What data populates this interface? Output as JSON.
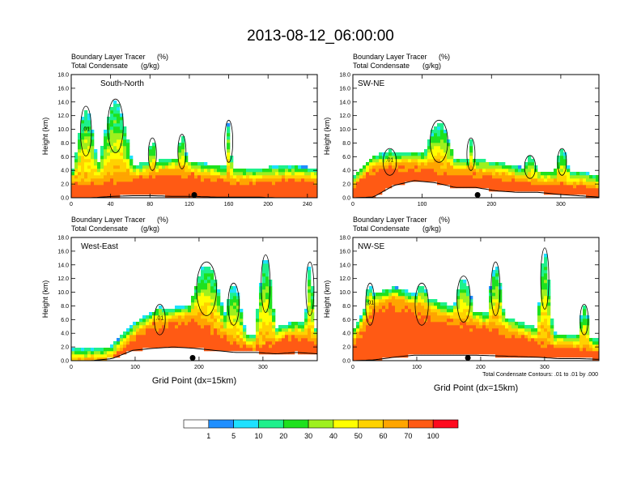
{
  "title": "2013-08-12_06:00:00",
  "colors": {
    "levels": [
      "#ffffff",
      "#1f8fff",
      "#1ee1ff",
      "#1ef08c",
      "#1ee11e",
      "#9ef01e",
      "#ffff00",
      "#ffd200",
      "#ffa500",
      "#ff5a14",
      "#ff0a1e"
    ],
    "contour": "#000000",
    "axis": "#000000"
  },
  "chart_data": {
    "type": "heatmap",
    "shared": {
      "field_label": "Boundary Layer Tracer",
      "field_units": "(%)",
      "contour_label": "Total Condensate",
      "contour_units": "(g/kg)",
      "ylabel": "Height (km)",
      "xlabel": "Grid Point (dx=15km)",
      "ylim": [
        0,
        18
      ],
      "yticks": [
        "0.0",
        "2.0",
        "4.0",
        "6.0",
        "8.0",
        "10.0",
        "12.0",
        "14.0",
        "16.0",
        "18.0"
      ],
      "contour_note": "Total Condensate Contours: .01 to .01 by .000"
    },
    "colorbar": {
      "levels": [
        "1",
        "5",
        "10",
        "20",
        "30",
        "40",
        "50",
        "60",
        "70",
        "100"
      ]
    },
    "panels": [
      {
        "name": "South-North",
        "xmax": 250,
        "xticks": [
          "0",
          "40",
          "80",
          "120",
          "160",
          "200",
          "240"
        ],
        "xtickvals": [
          0,
          40,
          80,
          120,
          160,
          200,
          240
        ],
        "marker_x": 125,
        "contour_value": ".01"
      },
      {
        "name": "SW-NE",
        "xmax": 355,
        "xticks": [
          "0",
          "100",
          "200",
          "300"
        ],
        "xtickvals": [
          0,
          100,
          200,
          300
        ],
        "marker_x": 180,
        "contour_value": ".01"
      },
      {
        "name": "West-East",
        "xmax": 385,
        "xticks": [
          "0",
          "100",
          "200",
          "300"
        ],
        "xtickvals": [
          0,
          100,
          200,
          300
        ],
        "marker_x": 190,
        "contour_value": ".01"
      },
      {
        "name": "NW-SE",
        "xmax": 385,
        "xticks": [
          "0",
          "100",
          "200",
          "300"
        ],
        "xtickvals": [
          0,
          100,
          200,
          300
        ],
        "marker_x": 180,
        "contour_value": ".01"
      }
    ]
  }
}
